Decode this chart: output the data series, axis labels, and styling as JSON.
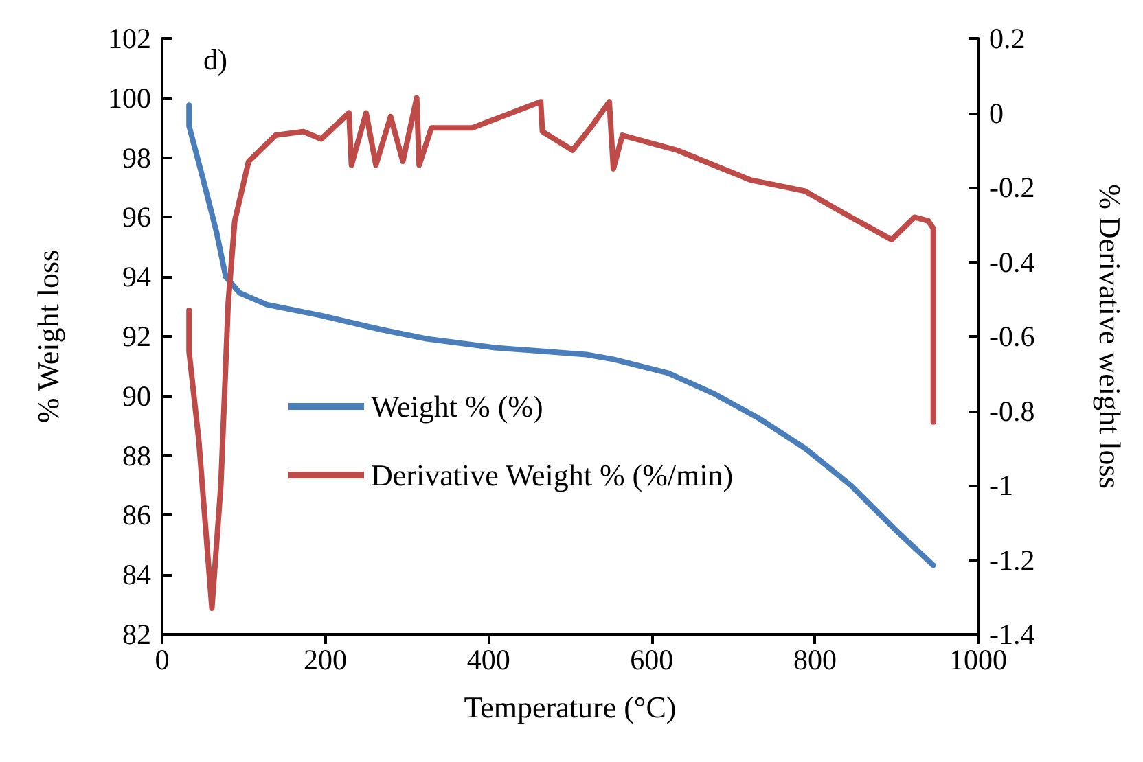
{
  "chart_data": {
    "type": "line",
    "xlabel": "Temperature (°C)",
    "ylabel": "% Weight loss",
    "y2label": "% Derivative weight loss",
    "annotations": [
      "d)"
    ],
    "xlim": [
      0,
      1000
    ],
    "xticks": [
      0,
      200,
      400,
      600,
      800,
      1000
    ],
    "ylim": [
      82,
      102
    ],
    "yticks": [
      82,
      84,
      86,
      88,
      90,
      92,
      94,
      96,
      98,
      100,
      102
    ],
    "y2lim": [
      -1.4,
      0.2
    ],
    "y2ticks": [
      -1.4,
      -1.2,
      -1,
      -0.8,
      -0.6,
      -0.4,
      -0.2,
      0,
      0.2
    ],
    "grid": false,
    "legend": "left",
    "marker": "none",
    "line_style": "solid",
    "series": [
      {
        "name": "Weight % (%)",
        "color": "#4a7ebb",
        "x": [
          33,
          33,
          50,
          67,
          78,
          95,
          128,
          195,
          268,
          324,
          408,
          520,
          553,
          620,
          676,
          732,
          788,
          844,
          900,
          945
        ],
        "values": [
          99.76,
          99.06,
          97.3,
          95.46,
          94.0,
          93.46,
          93.07,
          92.7,
          92.23,
          91.92,
          91.62,
          91.39,
          91.23,
          90.77,
          90.08,
          89.24,
          88.24,
          87.0,
          85.47,
          84.32
        ]
      },
      {
        "name": "Derivative Weight % (%/min)",
        "color": "#be4b48",
        "axis": "y2",
        "x": [
          33,
          33,
          45,
          61,
          72,
          81,
          89,
          106,
          139,
          173,
          195,
          229,
          232,
          250,
          262,
          280,
          295,
          312,
          315,
          330,
          380,
          464,
          466,
          503,
          525,
          548,
          553,
          564,
          631,
          676,
          721,
          788,
          844,
          894,
          922,
          939,
          945,
          945
        ],
        "values": [
          -0.53,
          -0.64,
          -0.88,
          -1.33,
          -1.0,
          -0.51,
          -0.29,
          -0.13,
          -0.06,
          -0.05,
          -0.07,
          0.0,
          -0.14,
          0.0,
          -0.14,
          -0.01,
          -0.13,
          0.04,
          -0.14,
          -0.04,
          -0.04,
          0.03,
          -0.05,
          -0.1,
          -0.04,
          0.03,
          -0.15,
          -0.06,
          -0.1,
          -0.14,
          -0.18,
          -0.21,
          -0.28,
          -0.34,
          -0.28,
          -0.29,
          -0.31,
          -0.83
        ]
      }
    ]
  }
}
